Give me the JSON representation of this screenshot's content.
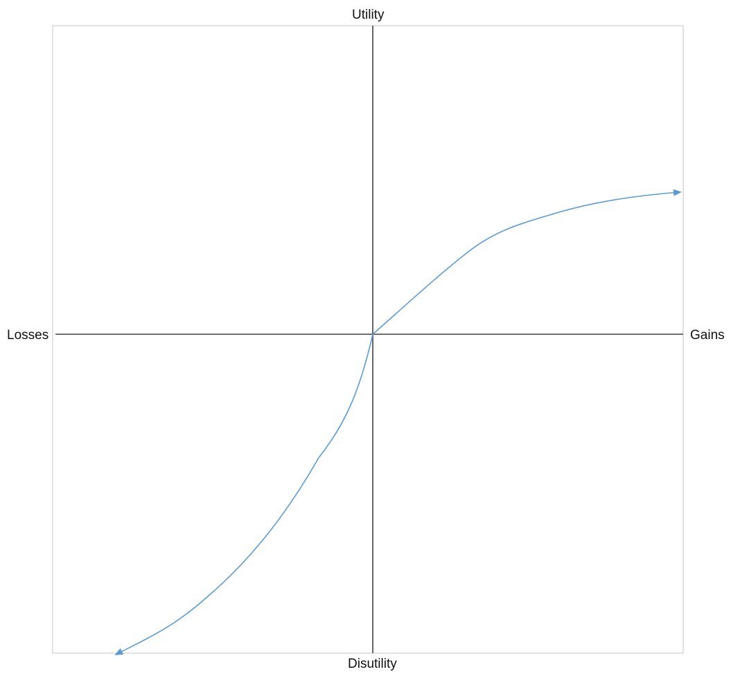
{
  "axes": {
    "top_label": "Utility",
    "bottom_label": "Disutility",
    "left_label": "Losses",
    "right_label": "Gains"
  },
  "colors": {
    "frame": "#d9d9d9",
    "axes": "#404040",
    "curve": "#5b9bd5"
  }
}
